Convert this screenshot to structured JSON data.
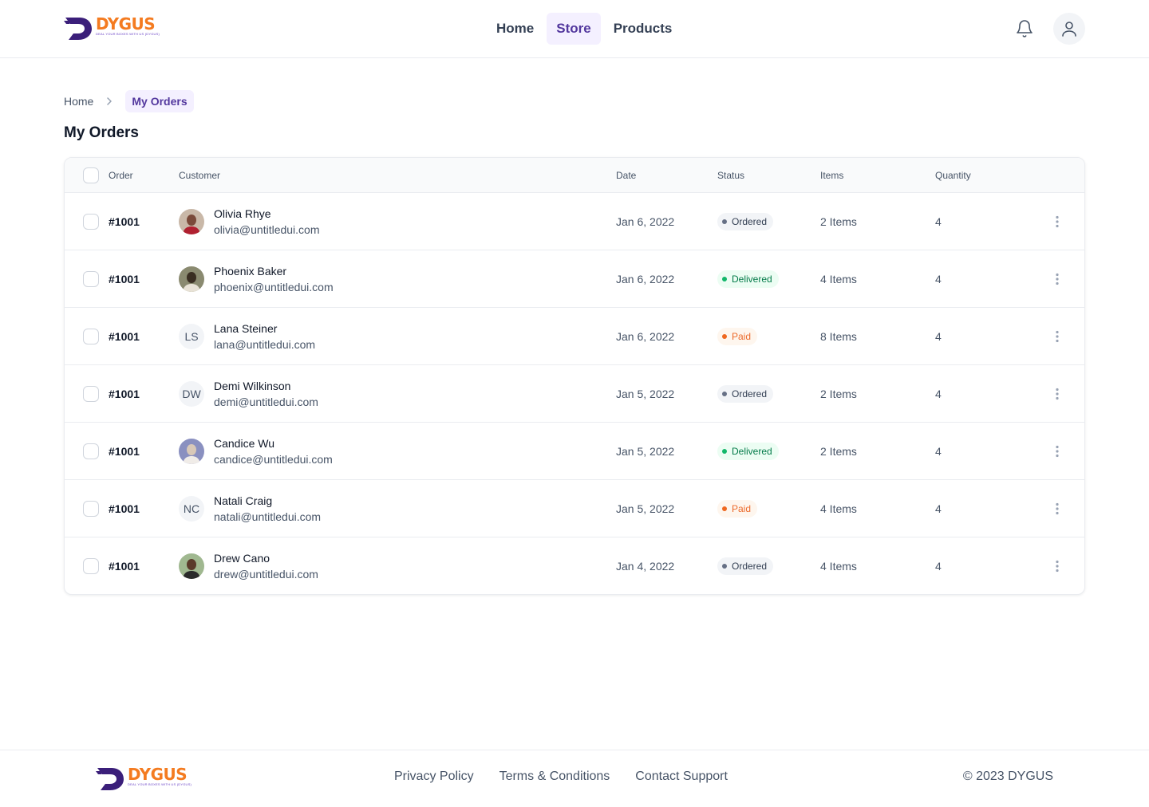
{
  "brand": {
    "name": "DYGUS",
    "tagline": "DEAL YOUR BOXES WITH US (DYGUS)",
    "color_primary": "#f47b20",
    "color_secondary": "#3b1f7a"
  },
  "nav": {
    "items": [
      {
        "label": "Home",
        "active": false
      },
      {
        "label": "Store",
        "active": true
      },
      {
        "label": "Products",
        "active": false
      }
    ]
  },
  "header_icons": {
    "notifications": "bell-icon",
    "account": "user-icon"
  },
  "breadcrumb": {
    "items": [
      "Home",
      "My Orders"
    ]
  },
  "page": {
    "title": "My Orders"
  },
  "table": {
    "columns": [
      "Order",
      "Customer",
      "Date",
      "Status",
      "Items",
      "Quantity"
    ],
    "rows": [
      {
        "order": "#1001",
        "name": "Olivia Rhye",
        "email": "olivia@untitledui.com",
        "avatar": "photo",
        "initials": "",
        "date": "Jan 6, 2022",
        "status": "Ordered",
        "items": "2 Items",
        "quantity": "4"
      },
      {
        "order": "#1001",
        "name": "Phoenix Baker",
        "email": "phoenix@untitledui.com",
        "avatar": "photo",
        "initials": "",
        "date": "Jan 6, 2022",
        "status": "Delivered",
        "items": "4 Items",
        "quantity": "4"
      },
      {
        "order": "#1001",
        "name": "Lana Steiner",
        "email": "lana@untitledui.com",
        "avatar": "initials",
        "initials": "LS",
        "date": "Jan 6, 2022",
        "status": "Paid",
        "items": "8 Items",
        "quantity": "4"
      },
      {
        "order": "#1001",
        "name": "Demi Wilkinson",
        "email": "demi@untitledui.com",
        "avatar": "initials",
        "initials": "DW",
        "date": "Jan 5, 2022",
        "status": "Ordered",
        "items": "2 Items",
        "quantity": "4"
      },
      {
        "order": "#1001",
        "name": "Candice Wu",
        "email": "candice@untitledui.com",
        "avatar": "photo",
        "initials": "",
        "date": "Jan 5, 2022",
        "status": "Delivered",
        "items": "2 Items",
        "quantity": "4"
      },
      {
        "order": "#1001",
        "name": "Natali Craig",
        "email": "natali@untitledui.com",
        "avatar": "initials",
        "initials": "NC",
        "date": "Jan 5, 2022",
        "status": "Paid",
        "items": "4 Items",
        "quantity": "4"
      },
      {
        "order": "#1001",
        "name": "Drew Cano",
        "email": "drew@untitledui.com",
        "avatar": "photo",
        "initials": "",
        "date": "Jan 4, 2022",
        "status": "Ordered",
        "items": "4 Items",
        "quantity": "4"
      }
    ]
  },
  "status_colors": {
    "Ordered": {
      "bg": "#f2f4f7",
      "fg": "#344054",
      "dot": "#667085"
    },
    "Delivered": {
      "bg": "#ecfdf3",
      "fg": "#027a48",
      "dot": "#12b76a"
    },
    "Paid": {
      "bg": "#fef6ee",
      "fg": "#ec6a2b",
      "dot": "#ef6820"
    }
  },
  "footer": {
    "links": [
      "Privacy Policy",
      "Terms & Conditions",
      "Contact Support"
    ],
    "copyright": "© 2023 DYGUS"
  }
}
